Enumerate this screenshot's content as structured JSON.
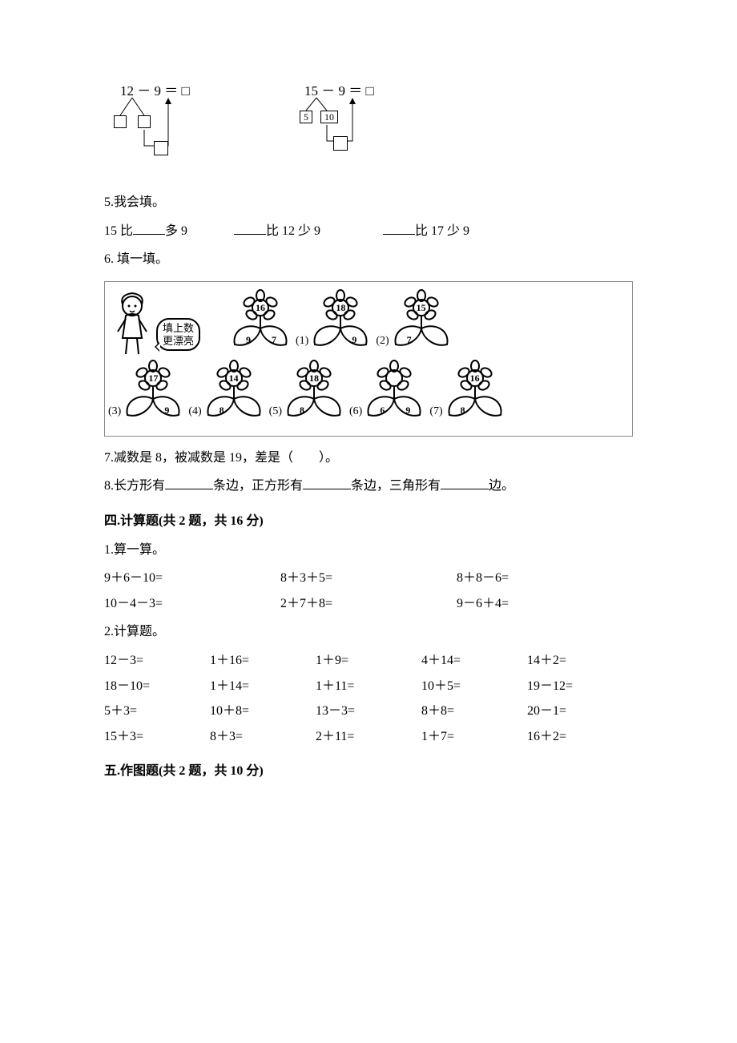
{
  "decomp": {
    "a": {
      "expr": "12 － 9 ＝ □",
      "leafL": "",
      "leafR": "",
      "bottom": ""
    },
    "b": {
      "expr": "15 － 9 ＝ □",
      "leafL": "5",
      "leafR": "10",
      "bottom": ""
    }
  },
  "q5": {
    "label": "5.我会填。",
    "parts": {
      "a_pre": "15 比",
      "a_post": "多 9",
      "b_post": "比 12 少 9",
      "c_post": "比 17 少 9"
    }
  },
  "q6": {
    "label": "6. 填一填。",
    "bubble_l1": "填上数",
    "bubble_l2": "更漂亮",
    "flowers": [
      {
        "idx": "",
        "c": "16",
        "l": "9",
        "r": "7"
      },
      {
        "idx": "(1)",
        "c": "18",
        "l": "",
        "r": "9"
      },
      {
        "idx": "(2)",
        "c": "15",
        "l": "7",
        "r": ""
      },
      {
        "idx": "(3)",
        "c": "17",
        "l": "",
        "r": "9"
      },
      {
        "idx": "(4)",
        "c": "14",
        "l": "8",
        "r": ""
      },
      {
        "idx": "(5)",
        "c": "18",
        "l": "8",
        "r": ""
      },
      {
        "idx": "(6)",
        "c": "",
        "l": "6",
        "r": "9"
      },
      {
        "idx": "(7)",
        "c": "16",
        "l": "8",
        "r": ""
      }
    ]
  },
  "q7": "7.减数是 8，被减数是 19，差是（　　）。",
  "q8": {
    "pre": "8.长方形有",
    "mid1": "条边，正方形有",
    "mid2": "条边，三角形有",
    "post": "边。"
  },
  "sec4": {
    "title": "四.计算题(共 2 题，共 16 分)",
    "p1_label": "1.算一算。",
    "p1_rows": [
      [
        "9＋6－10=",
        "8＋3＋5=",
        "8＋8－6="
      ],
      [
        "10－4－3=",
        "2＋7＋8=",
        "9－6＋4="
      ]
    ],
    "p2_label": "2.计算题。",
    "p2_rows": [
      [
        "12－3=",
        "1＋16=",
        "1＋9=",
        "4＋14=",
        "14＋2="
      ],
      [
        "18－10=",
        "1＋14=",
        "1＋11=",
        "10＋5=",
        "19－12="
      ],
      [
        "5＋3=",
        "10＋8=",
        "13－3=",
        "8＋8=",
        "20－1="
      ],
      [
        "15＋3=",
        "8＋3=",
        "2＋11=",
        "1＋7=",
        "16＋2="
      ]
    ]
  },
  "sec5": {
    "title": "五.作图题(共 2 题，共 10 分)"
  }
}
